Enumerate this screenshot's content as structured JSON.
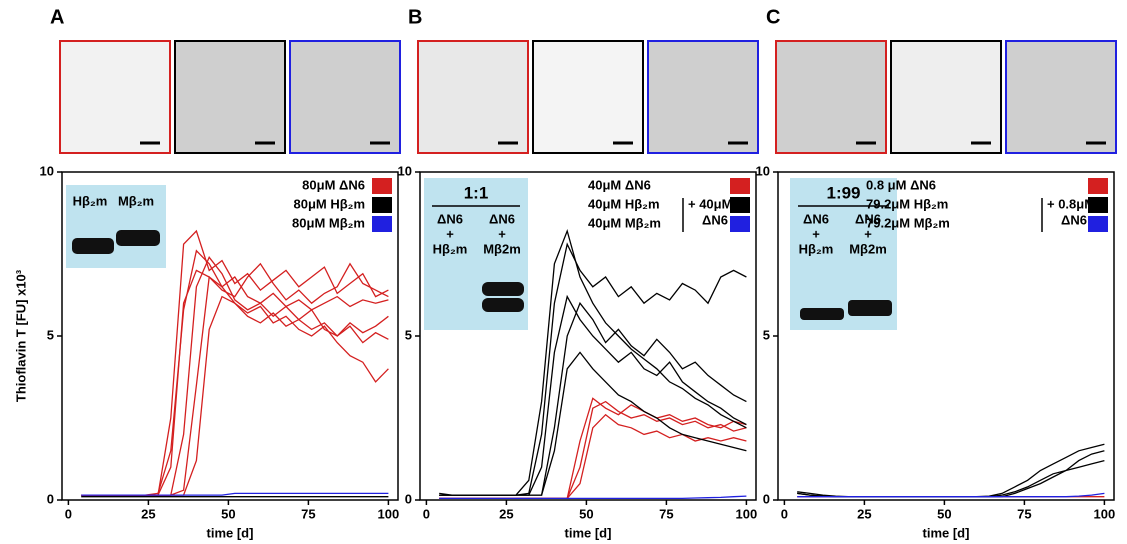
{
  "chart_data": [
    {
      "type": "line",
      "panel": "A",
      "xlabel": "time [d]",
      "ylabel": "Thioflavin T [FU] x10³",
      "xlim": [
        -2,
        103
      ],
      "xticks": [
        0,
        25,
        50,
        75,
        100
      ],
      "ylim": [
        0,
        10
      ],
      "yticks": [
        0,
        5,
        10
      ],
      "x": [
        4,
        8,
        12,
        16,
        20,
        24,
        28,
        32,
        36,
        40,
        44,
        48,
        52,
        56,
        60,
        64,
        68,
        72,
        76,
        80,
        84,
        88,
        92,
        96,
        100
      ],
      "inset": {
        "labels": [
          "Hβ₂m",
          "Mβ₂m"
        ]
      },
      "series": [
        {
          "name": "80μM ΔN6",
          "color": "#d42020",
          "traces": [
            [
              0.15,
              0.15,
              0.15,
              0.15,
              0.15,
              0.15,
              0.2,
              1.5,
              5.8,
              7.6,
              7.2,
              6.5,
              6.8,
              6.2,
              6.0,
              6.3,
              5.9,
              6.1,
              5.8,
              6.0,
              6.2,
              5.9,
              6.1,
              6.0,
              6.1
            ],
            [
              0.15,
              0.15,
              0.15,
              0.15,
              0.15,
              0.15,
              0.15,
              0.15,
              0.3,
              3.5,
              6.8,
              6.5,
              6.0,
              5.6,
              5.4,
              5.7,
              5.3,
              5.5,
              5.2,
              5.4,
              5.0,
              5.3,
              4.8,
              5.1,
              4.9
            ],
            [
              0.15,
              0.15,
              0.15,
              0.15,
              0.15,
              0.15,
              0.15,
              2.5,
              7.8,
              8.2,
              7.0,
              7.3,
              6.6,
              6.9,
              6.4,
              6.7,
              7.0,
              6.5,
              6.8,
              7.1,
              6.3,
              6.6,
              6.9,
              6.2,
              6.4
            ],
            [
              0.15,
              0.15,
              0.15,
              0.15,
              0.15,
              0.15,
              0.15,
              0.15,
              0.15,
              1.2,
              5.2,
              6.2,
              6.0,
              5.7,
              5.9,
              5.4,
              5.6,
              5.2,
              5.0,
              5.3,
              4.8,
              4.4,
              4.2,
              3.6,
              4.0
            ],
            [
              0.15,
              0.15,
              0.15,
              0.15,
              0.15,
              0.15,
              0.15,
              1.0,
              6.0,
              7.0,
              6.8,
              6.4,
              6.2,
              6.8,
              7.2,
              6.6,
              6.1,
              6.4,
              6.0,
              6.3,
              6.5,
              7.2,
              6.6,
              6.4,
              6.2
            ],
            [
              0.15,
              0.15,
              0.15,
              0.15,
              0.15,
              0.15,
              0.15,
              0.15,
              2.0,
              6.5,
              7.4,
              6.9,
              6.1,
              5.8,
              6.0,
              5.6,
              5.9,
              5.5,
              5.8,
              5.2,
              5.0,
              5.4,
              5.1,
              5.3,
              5.6
            ]
          ]
        },
        {
          "name": "80μM Hβ₂m",
          "color": "#000000",
          "traces": [
            [
              0.1,
              0.1,
              0.1,
              0.1,
              0.1,
              0.1,
              0.1,
              0.1,
              0.1,
              0.1,
              0.1,
              0.1,
              0.1,
              0.1,
              0.1,
              0.1,
              0.1,
              0.1,
              0.1,
              0.1,
              0.1,
              0.1,
              0.1,
              0.1,
              0.1
            ]
          ]
        },
        {
          "name": "80μM Mβ₂m",
          "color": "#2020e0",
          "traces": [
            [
              0.15,
              0.15,
              0.15,
              0.15,
              0.15,
              0.15,
              0.15,
              0.15,
              0.15,
              0.15,
              0.15,
              0.15,
              0.2,
              0.2,
              0.2,
              0.2,
              0.2,
              0.2,
              0.2,
              0.2,
              0.2,
              0.2,
              0.2,
              0.2,
              0.2
            ]
          ]
        }
      ]
    },
    {
      "type": "line",
      "panel": "B",
      "xlabel": "time [d]",
      "xlim": [
        -2,
        103
      ],
      "xticks": [
        0,
        25,
        50,
        75,
        100
      ],
      "ylim": [
        0,
        10
      ],
      "yticks": [
        0,
        5,
        10
      ],
      "x": [
        4,
        8,
        12,
        16,
        20,
        24,
        28,
        32,
        36,
        40,
        44,
        48,
        52,
        56,
        60,
        64,
        68,
        72,
        76,
        80,
        84,
        88,
        92,
        96,
        100
      ],
      "inset": {
        "title": "1:1",
        "columns": [
          [
            "ΔN6",
            "+",
            "Hβ₂m"
          ],
          [
            "ΔN6",
            "+",
            "Mβ2m"
          ]
        ]
      },
      "legend_note": [
        "+ 40μM",
        "ΔN6"
      ],
      "series": [
        {
          "name": "40μM ΔN6",
          "color": "#d42020",
          "traces": [
            [
              0.05,
              0.05,
              0.05,
              0.05,
              0.05,
              0.05,
              0.05,
              0.05,
              0.05,
              0.05,
              0.05,
              1.0,
              2.8,
              3.0,
              2.7,
              2.5,
              2.6,
              2.4,
              2.5,
              2.3,
              2.4,
              2.2,
              2.3,
              2.1,
              2.2
            ],
            [
              0.05,
              0.05,
              0.05,
              0.05,
              0.05,
              0.05,
              0.05,
              0.05,
              0.05,
              0.05,
              0.05,
              0.5,
              2.2,
              2.6,
              2.3,
              2.2,
              2.0,
              2.1,
              1.9,
              2.0,
              1.8,
              1.9,
              1.8,
              1.9,
              1.8
            ],
            [
              0.05,
              0.05,
              0.05,
              0.05,
              0.05,
              0.05,
              0.05,
              0.05,
              0.05,
              0.05,
              0.05,
              1.8,
              3.1,
              2.8,
              2.6,
              2.9,
              2.7,
              2.5,
              2.6,
              2.4,
              2.5,
              2.3,
              2.2,
              2.4,
              2.3
            ]
          ]
        },
        {
          "name": "40μM Hβ₂m",
          "color": "#000000",
          "traces": [
            [
              0.2,
              0.15,
              0.15,
              0.15,
              0.15,
              0.15,
              0.15,
              0.2,
              2.0,
              6.0,
              7.8,
              7.0,
              6.5,
              6.8,
              6.2,
              6.5,
              6.0,
              6.3,
              6.1,
              6.6,
              6.4,
              6.0,
              6.8,
              7.0,
              6.8
            ],
            [
              0.15,
              0.15,
              0.15,
              0.15,
              0.15,
              0.15,
              0.15,
              0.15,
              1.0,
              4.5,
              6.2,
              5.5,
              5.0,
              4.6,
              4.2,
              4.5,
              4.0,
              3.8,
              4.2,
              3.6,
              3.3,
              3.0,
              2.8,
              2.5,
              2.3
            ],
            [
              0.15,
              0.15,
              0.15,
              0.15,
              0.15,
              0.15,
              0.15,
              0.15,
              0.15,
              2.2,
              5.0,
              6.0,
              5.5,
              4.8,
              5.2,
              4.7,
              4.4,
              4.9,
              4.5,
              4.0,
              4.2,
              3.8,
              3.5,
              3.2,
              3.0
            ],
            [
              0.15,
              0.15,
              0.15,
              0.15,
              0.15,
              0.15,
              0.15,
              0.6,
              3.0,
              7.2,
              8.2,
              6.8,
              6.0,
              5.4,
              5.0,
              4.6,
              4.3,
              4.0,
              3.6,
              3.4,
              3.1,
              2.9,
              2.6,
              2.4,
              2.2
            ],
            [
              0.15,
              0.15,
              0.15,
              0.15,
              0.15,
              0.15,
              0.15,
              0.15,
              0.15,
              1.5,
              4.0,
              4.5,
              4.0,
              3.6,
              3.2,
              3.0,
              2.7,
              2.5,
              2.2,
              2.0,
              1.9,
              1.8,
              1.7,
              1.6,
              1.5
            ]
          ]
        },
        {
          "name": "40μM Mβ₂m",
          "color": "#2020e0",
          "traces": [
            [
              0.05,
              0.05,
              0.05,
              0.05,
              0.05,
              0.05,
              0.05,
              0.05,
              0.05,
              0.05,
              0.05,
              0.05,
              0.05,
              0.05,
              0.05,
              0.05,
              0.05,
              0.05,
              0.05,
              0.05,
              0.06,
              0.07,
              0.08,
              0.1,
              0.12
            ]
          ]
        }
      ]
    },
    {
      "type": "line",
      "panel": "C",
      "xlabel": "time [d]",
      "xlim": [
        -2,
        103
      ],
      "xticks": [
        0,
        25,
        50,
        75,
        100
      ],
      "ylim": [
        0,
        10
      ],
      "yticks": [
        0,
        5,
        10
      ],
      "x": [
        4,
        8,
        12,
        16,
        20,
        24,
        28,
        32,
        36,
        40,
        44,
        48,
        52,
        56,
        60,
        64,
        68,
        72,
        76,
        80,
        84,
        88,
        92,
        96,
        100
      ],
      "inset": {
        "title": "1:99",
        "columns": [
          [
            "ΔN6",
            "+",
            "Hβ₂m"
          ],
          [
            "ΔN6",
            "+",
            "Mβ2m"
          ]
        ]
      },
      "legend_note": [
        "+ 0.8μM",
        "ΔN6"
      ],
      "series": [
        {
          "name": "0.8  μM ΔN6",
          "color": "#d42020",
          "traces": [
            [
              0.1,
              0.1,
              0.1,
              0.1,
              0.1,
              0.1,
              0.1,
              0.1,
              0.1,
              0.1,
              0.1,
              0.1,
              0.1,
              0.1,
              0.1,
              0.1,
              0.1,
              0.1,
              0.1,
              0.1,
              0.1,
              0.1,
              0.1,
              0.1,
              0.1
            ]
          ]
        },
        {
          "name": "79.2μM Hβ₂m",
          "color": "#000000",
          "traces": [
            [
              0.25,
              0.2,
              0.15,
              0.12,
              0.1,
              0.1,
              0.1,
              0.1,
              0.1,
              0.1,
              0.1,
              0.1,
              0.1,
              0.1,
              0.1,
              0.12,
              0.2,
              0.4,
              0.6,
              0.9,
              1.1,
              1.3,
              1.5,
              1.6,
              1.7
            ],
            [
              0.2,
              0.15,
              0.12,
              0.1,
              0.1,
              0.1,
              0.1,
              0.1,
              0.1,
              0.1,
              0.1,
              0.1,
              0.1,
              0.1,
              0.1,
              0.1,
              0.15,
              0.25,
              0.4,
              0.6,
              0.8,
              0.9,
              1.0,
              1.1,
              1.2
            ],
            [
              0.2,
              0.15,
              0.12,
              0.1,
              0.1,
              0.1,
              0.1,
              0.1,
              0.1,
              0.1,
              0.1,
              0.1,
              0.1,
              0.1,
              0.1,
              0.1,
              0.1,
              0.2,
              0.35,
              0.5,
              0.7,
              0.9,
              1.2,
              1.4,
              1.5
            ]
          ]
        },
        {
          "name": "79.2μM Mβ₂m",
          "color": "#2020e0",
          "traces": [
            [
              0.1,
              0.1,
              0.1,
              0.1,
              0.1,
              0.1,
              0.1,
              0.1,
              0.1,
              0.1,
              0.1,
              0.1,
              0.1,
              0.1,
              0.1,
              0.1,
              0.1,
              0.1,
              0.1,
              0.1,
              0.1,
              0.1,
              0.12,
              0.15,
              0.2
            ]
          ]
        }
      ]
    }
  ]
}
